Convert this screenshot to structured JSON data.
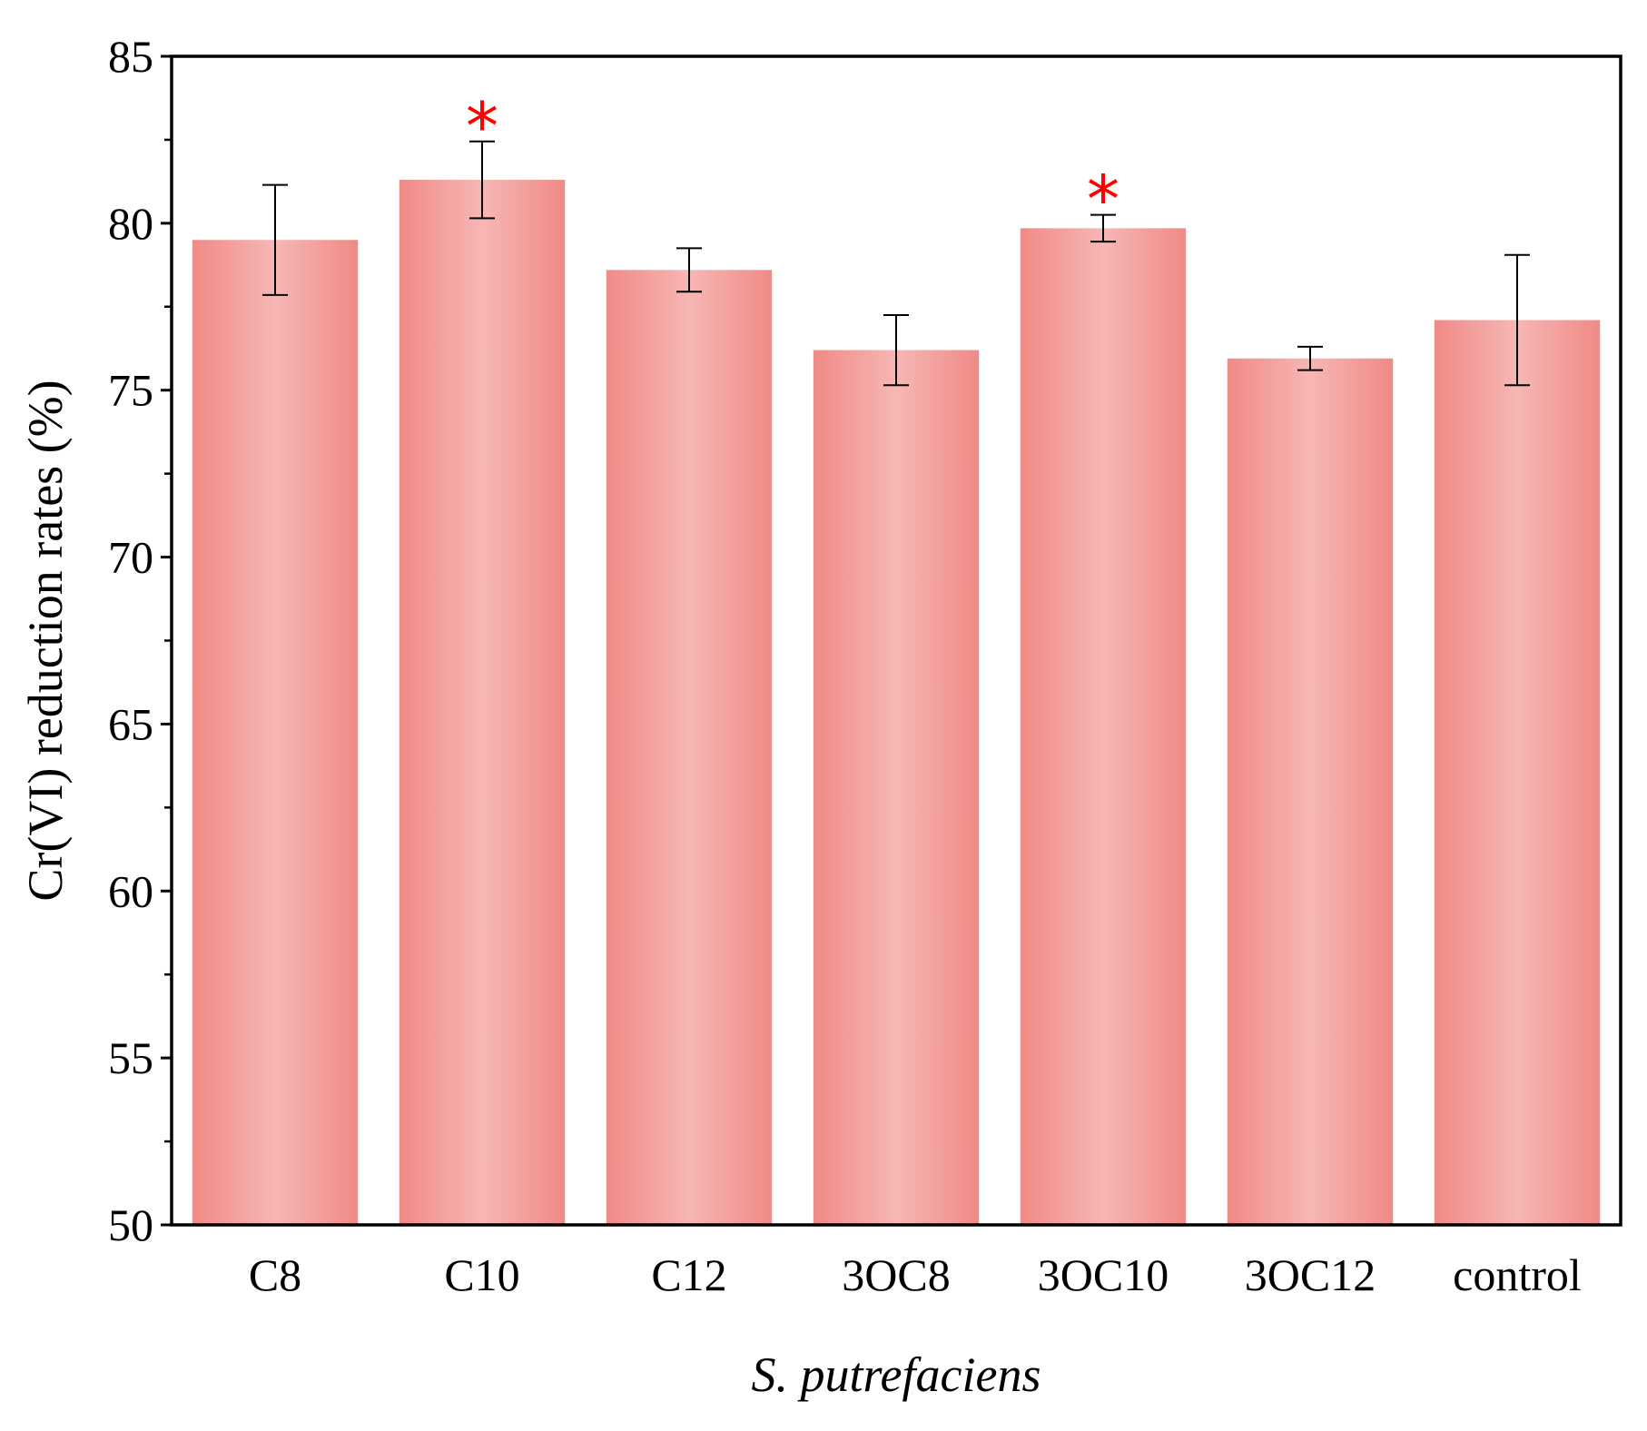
{
  "chart_data": {
    "type": "bar",
    "title": "",
    "xlabel": "S. putrefaciens",
    "ylabel": "Cr(VI) reduction rates (%)",
    "ylim": [
      50,
      85
    ],
    "yticks": [
      "50",
      "55",
      "60",
      "65",
      "70",
      "75",
      "80",
      "85"
    ],
    "grid": false,
    "categories": [
      "C8",
      "C10",
      "C12",
      "3OC8",
      "3OC10",
      "3OC12",
      "control"
    ],
    "values": [
      79.5,
      81.3,
      78.6,
      76.2,
      79.85,
      75.95,
      77.1
    ],
    "errors": [
      1.65,
      1.15,
      0.65,
      1.05,
      0.4,
      0.35,
      1.95
    ],
    "significance_marker": "*",
    "significant": [
      false,
      true,
      false,
      false,
      true,
      false,
      false
    ],
    "colors": {
      "bar_edge": "#f08a86",
      "bar_center": "#f6b7b5",
      "marker": "#ff0000",
      "axis": "#000000"
    }
  }
}
